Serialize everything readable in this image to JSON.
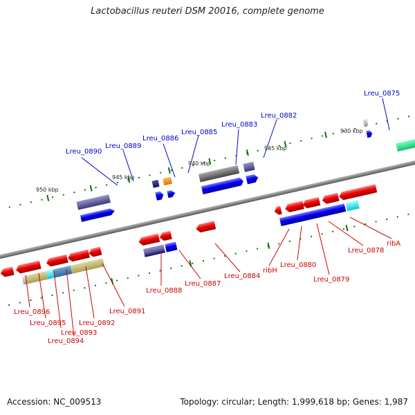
{
  "title": "Lactobacillus reuteri DSM 20016, complete genome",
  "footer": {
    "accession": "Accession: NC_009513",
    "summary": "Topology: circular; Length: 1,999,618 bp; Genes: 1,987"
  },
  "scale_labels": [
    "950 kbp",
    "945 kbp",
    "940 kbp",
    "935 kbp",
    "930 kbp"
  ],
  "colors": {
    "backbone": "#8a8a8a",
    "forward_label": "#0000cc",
    "reverse_label": "#cc0000",
    "forward_gene": "#0000ee",
    "reverse_gene": "#ee0000",
    "tick": "#007700"
  },
  "forward_genes": [
    "Lreu_0890",
    "Lreu_0889",
    "Lreu_0886",
    "Lreu_0885",
    "Lreu_0883",
    "Lreu_0882",
    "Lreu_0875"
  ],
  "reverse_genes": [
    "Lreu_0896",
    "Lreu_0895",
    "Lreu_0893",
    "Lreu_0894",
    "Lreu_0892",
    "Lreu_0891",
    "Lreu_0888",
    "Lreu_0887",
    "Lreu_0884",
    "ribH",
    "Lreu_0880",
    "Lreu_0879",
    "Lreu_0878",
    "ribA"
  ]
}
